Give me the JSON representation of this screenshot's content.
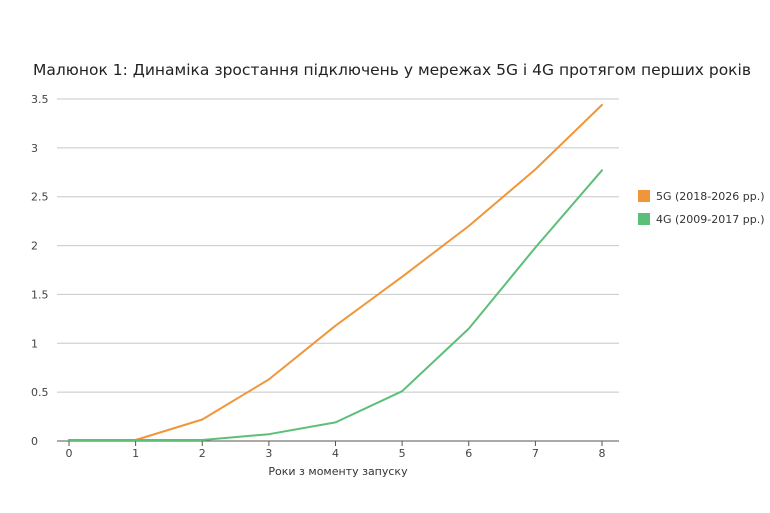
{
  "chart_data": {
    "type": "line",
    "title": "Малюнок 1: Динаміка зростання підключень у мережах 5G і 4G протягом перших років",
    "xlabel": "Роки з моменту запуску",
    "ylabel": "",
    "x": [
      0,
      1,
      2,
      3,
      4,
      5,
      6,
      7,
      8
    ],
    "xlim": [
      0,
      8
    ],
    "ylim": [
      0,
      3.5
    ],
    "y_ticks": [
      "0",
      "0.5",
      "1",
      "1.5",
      "2",
      "2.5",
      "3",
      "3.5"
    ],
    "x_ticks": [
      "0",
      "1",
      "2",
      "3",
      "4",
      "5",
      "6",
      "7",
      "8"
    ],
    "grid": true,
    "legend_position": "right",
    "series": [
      {
        "name": "5G (2018-2026 рр.)",
        "color": "#F0963A",
        "values": [
          0.01,
          0.01,
          0.22,
          0.63,
          1.18,
          1.68,
          2.2,
          2.78,
          3.44
        ]
      },
      {
        "name": "4G (2009-2017 рр.)",
        "color": "#5CBF78",
        "values": [
          0.01,
          0.01,
          0.01,
          0.07,
          0.19,
          0.51,
          1.15,
          1.98,
          2.77
        ]
      }
    ]
  }
}
